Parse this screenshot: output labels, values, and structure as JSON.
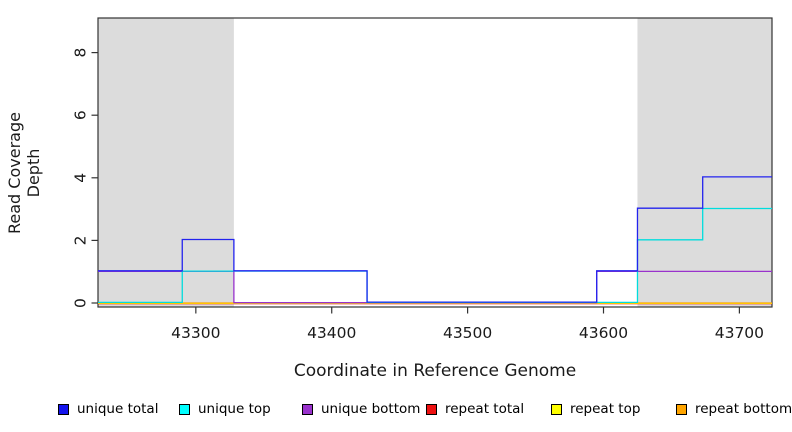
{
  "chart_data": {
    "type": "line",
    "subtype": "step",
    "title": "",
    "xlabel": "Coordinate in Reference Genome",
    "ylabel": "Read Coverage Depth",
    "xlim": [
      43228,
      43724
    ],
    "ylim": [
      0,
      9.1
    ],
    "x_ticks": [
      "43300",
      "43400",
      "43500",
      "43600",
      "43700"
    ],
    "x_tick_values": [
      43300,
      43400,
      43500,
      43600,
      43700
    ],
    "y_ticks": [
      "0",
      "2",
      "4",
      "6",
      "8"
    ],
    "y_tick_values": [
      0,
      2,
      4,
      6,
      8
    ],
    "grid": false,
    "legend_position": "bottom",
    "background_color": "#FFFFFF",
    "shade_color": "#DCDCDC",
    "axis_color": "#333333",
    "shaded_regions": [
      {
        "x0": 43228,
        "x1": 43328
      },
      {
        "x0": 43625,
        "x1": 43724
      }
    ],
    "series": [
      {
        "name": "repeat total",
        "color": "#EE0000",
        "points": [
          [
            43228,
            0
          ],
          [
            43724,
            0
          ]
        ]
      },
      {
        "name": "repeat top",
        "color": "#FFFF00",
        "points": [
          [
            43228,
            0
          ],
          [
            43724,
            0
          ]
        ]
      },
      {
        "name": "repeat bottom",
        "color": "#FFA500",
        "points": [
          [
            43228,
            0
          ],
          [
            43724,
            0
          ]
        ]
      },
      {
        "name": "unique bottom",
        "color": "#9932CC",
        "points": [
          [
            43228,
            1
          ],
          [
            43328,
            0
          ],
          [
            43595,
            1
          ],
          [
            43724,
            1
          ]
        ]
      },
      {
        "name": "unique top",
        "color": "#00DDDD",
        "points": [
          [
            43228,
            0
          ],
          [
            43290,
            1
          ],
          [
            43426,
            0
          ],
          [
            43625,
            2
          ],
          [
            43673,
            3
          ],
          [
            43724,
            3
          ]
        ]
      },
      {
        "name": "unique total",
        "color": "#2323EE",
        "points": [
          [
            43228,
            1
          ],
          [
            43290,
            2
          ],
          [
            43328,
            1
          ],
          [
            43426,
            0
          ],
          [
            43595,
            1
          ],
          [
            43625,
            3
          ],
          [
            43673,
            4
          ],
          [
            43724,
            4
          ]
        ]
      }
    ],
    "legend": [
      {
        "label": "unique total",
        "color": "#1414EE"
      },
      {
        "label": "unique top",
        "color": "#00FFFF"
      },
      {
        "label": "unique bottom",
        "color": "#9932CC"
      },
      {
        "label": "repeat total",
        "color": "#EE1111"
      },
      {
        "label": "repeat top",
        "color": "#FFFF00"
      },
      {
        "label": "repeat bottom",
        "color": "#FFA500"
      }
    ]
  }
}
